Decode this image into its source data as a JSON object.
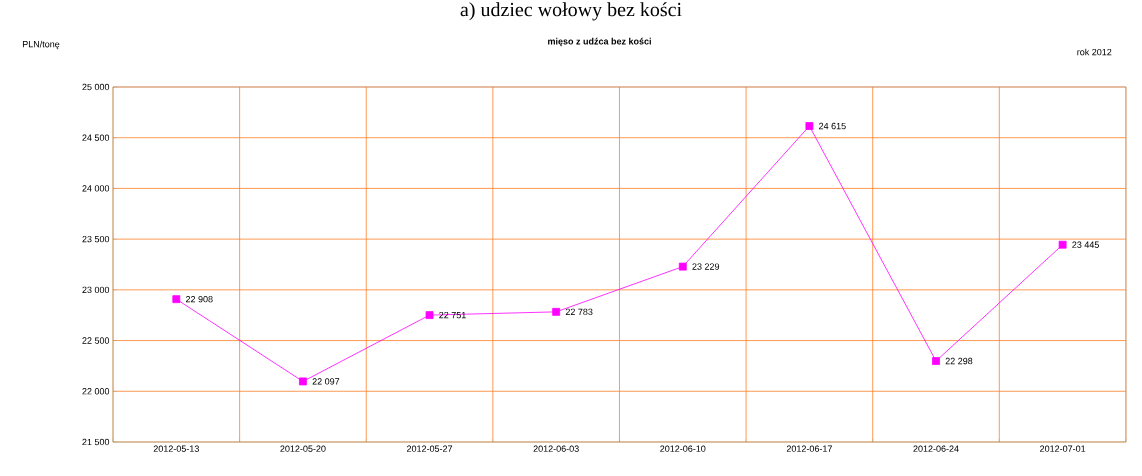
{
  "chart_data": {
    "type": "line",
    "title": "a) udziec wołowy bez kości",
    "subtitle": "mięso z udźca bez kości",
    "ylabel": "PLN/tonę",
    "annotations": [
      "rok 2012"
    ],
    "categories": [
      "2012-05-13",
      "2012-05-20",
      "2012-05-27",
      "2012-06-03",
      "2012-06-10",
      "2012-06-17",
      "2012-06-24",
      "2012-07-01"
    ],
    "series": [
      {
        "color": "#ff00ff",
        "values": [
          22908,
          22097,
          22751,
          22783,
          23229,
          24615,
          22298,
          23445
        ],
        "value_labels": [
          "22 908",
          "22 097",
          "22 751",
          "22 783",
          "23 229",
          "24 615",
          "22 298",
          "23 445"
        ]
      }
    ],
    "ylim": [
      21500,
      25000
    ],
    "yticks": [
      {
        "value": 21500,
        "label": "21 500"
      },
      {
        "value": 22000,
        "label": "22 000"
      },
      {
        "value": 22500,
        "label": "22 500"
      },
      {
        "value": 23000,
        "label": "23 000"
      },
      {
        "value": 23500,
        "label": "23 500"
      },
      {
        "value": 24000,
        "label": "24 000"
      },
      {
        "value": 24500,
        "label": "24 500"
      },
      {
        "value": 25000,
        "label": "25 000"
      }
    ],
    "grid": true,
    "marker": "square",
    "line_style": "solid"
  }
}
